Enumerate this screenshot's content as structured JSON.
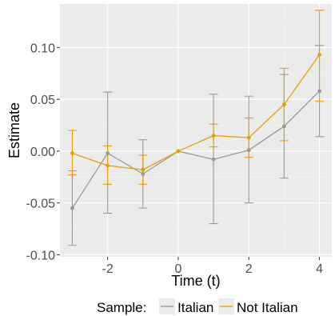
{
  "chart_data": {
    "type": "line",
    "title": "",
    "xlabel": "Time (t)",
    "ylabel": "Estimate",
    "xlim": [
      -3.35,
      4.35
    ],
    "ylim": [
      -0.102,
      0.142
    ],
    "x_ticks": [
      -2,
      0,
      2,
      4
    ],
    "x_tick_labels": [
      "-2",
      "0",
      "2",
      "4"
    ],
    "y_ticks": [
      -0.1,
      -0.05,
      0.0,
      0.05,
      0.1
    ],
    "y_tick_labels": [
      "-0.10",
      "-0.05",
      "0.00",
      "0.05",
      "0.10"
    ],
    "grid": true,
    "background": "#ebebeb",
    "legend": {
      "title": "Sample:",
      "position": "bottom",
      "entries": [
        "Italian",
        "Not Italian"
      ]
    },
    "series": [
      {
        "name": "Italian",
        "color": "#999999",
        "x": [
          -3,
          -2,
          -1,
          0,
          1,
          2,
          3,
          4
        ],
        "y": [
          -0.055,
          -0.002,
          -0.022,
          0.0,
          -0.008,
          0.001,
          0.024,
          0.058
        ],
        "ci_low": [
          -0.091,
          -0.06,
          -0.055,
          0.0,
          -0.07,
          -0.05,
          -0.026,
          0.014
        ],
        "ci_high": [
          -0.019,
          0.057,
          0.011,
          0.0,
          0.055,
          0.053,
          0.074,
          0.102
        ]
      },
      {
        "name": "Not Italian",
        "color": "#e69f00",
        "x": [
          -3,
          -2,
          -1,
          0,
          1,
          2,
          3,
          4
        ],
        "y": [
          -0.002,
          -0.014,
          -0.018,
          0.0,
          0.015,
          0.013,
          0.045,
          0.093
        ],
        "ci_low": [
          -0.023,
          -0.032,
          -0.032,
          0.0,
          0.004,
          -0.006,
          0.01,
          0.048
        ],
        "ci_high": [
          0.02,
          0.005,
          -0.004,
          0.0,
          0.026,
          0.032,
          0.08,
          0.136
        ]
      }
    ]
  }
}
